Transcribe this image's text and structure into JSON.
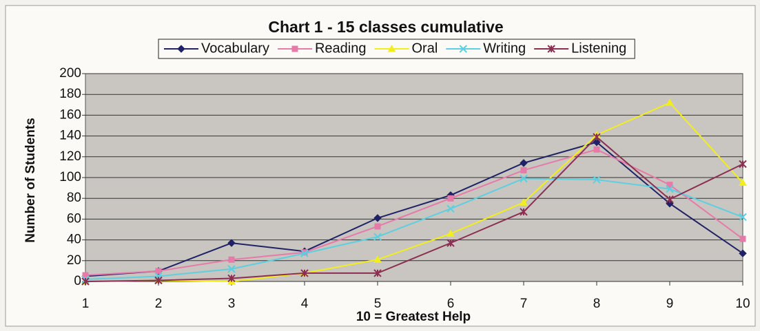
{
  "chart_data": {
    "type": "line",
    "title": "Chart 1 - 15 classes cumulative",
    "xlabel": "10 = Greatest Help",
    "ylabel": "Number of Students",
    "x": [
      1,
      2,
      3,
      4,
      5,
      6,
      7,
      8,
      9,
      10
    ],
    "xlim": [
      1,
      10
    ],
    "xticks": [
      1,
      2,
      3,
      4,
      5,
      6,
      7,
      8,
      9,
      10
    ],
    "ylim": [
      0,
      200
    ],
    "yticks": [
      0,
      20,
      40,
      60,
      80,
      100,
      120,
      140,
      160,
      180,
      200
    ],
    "grid": true,
    "legend": "top",
    "series": [
      {
        "name": "Vocabulary",
        "color": "#1f2266",
        "marker": "diamond",
        "values": [
          5,
          10,
          37,
          29,
          61,
          83,
          114,
          134,
          75,
          27
        ]
      },
      {
        "name": "Reading",
        "color": "#e67aa8",
        "marker": "square",
        "values": [
          6,
          10,
          21,
          28,
          53,
          80,
          107,
          127,
          93,
          41
        ]
      },
      {
        "name": "Oral",
        "color": "#f2ee1e",
        "marker": "triangle",
        "values": [
          0,
          1,
          0,
          8,
          21,
          46,
          76,
          141,
          172,
          95
        ]
      },
      {
        "name": "Writing",
        "color": "#5ccfe0",
        "marker": "x",
        "values": [
          2,
          5,
          12,
          27,
          43,
          70,
          99,
          98,
          89,
          62
        ]
      },
      {
        "name": "Listening",
        "color": "#8a2f52",
        "marker": "star",
        "values": [
          0,
          1,
          3,
          8,
          8,
          37,
          67,
          139,
          79,
          113
        ]
      }
    ]
  }
}
